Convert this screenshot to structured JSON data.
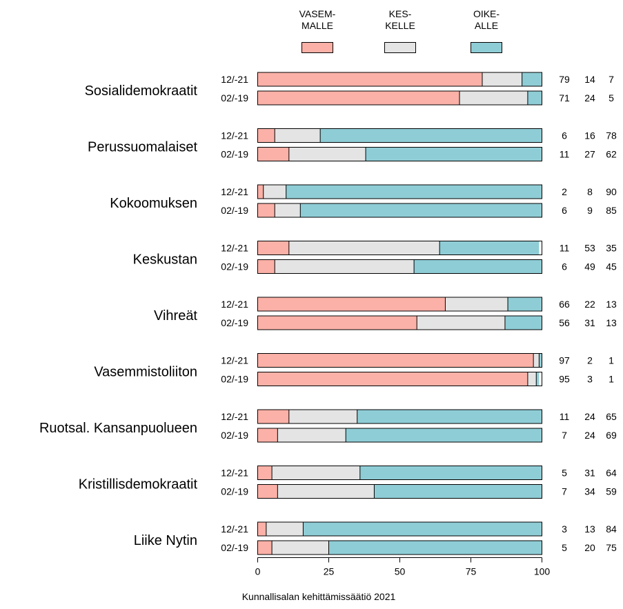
{
  "chart_data": {
    "type": "bar",
    "orientation": "horizontal",
    "stacked": true,
    "title": "",
    "xlabel": "",
    "ylabel": "",
    "xlim": [
      0,
      100
    ],
    "xticks": [
      0,
      25,
      50,
      75,
      100
    ],
    "grid": false,
    "legend_position": "top",
    "legend": [
      {
        "key": "left",
        "label_lines": [
          "VASEM-",
          "MALLE"
        ],
        "color": "#FBB1A7"
      },
      {
        "key": "center",
        "label_lines": [
          "KES-",
          "KELLE"
        ],
        "color": "#E4E4E4"
      },
      {
        "key": "right",
        "label_lines": [
          "OIKE-",
          "ALLE"
        ],
        "color": "#8FCDD6"
      }
    ],
    "series": [
      {
        "name": "VASEMMALLE",
        "color": "#FBB1A7"
      },
      {
        "name": "KESKELLE",
        "color": "#E4E4E4"
      },
      {
        "name": "OIKEALLE",
        "color": "#8FCDD6"
      }
    ],
    "groups": [
      {
        "party": "Sosialidemokraatit",
        "rows": [
          {
            "period": "12/-21",
            "values": [
              79,
              14,
              7
            ]
          },
          {
            "period": "02/-19",
            "values": [
              71,
              24,
              5
            ]
          }
        ]
      },
      {
        "party": "Perussuomalaiset",
        "rows": [
          {
            "period": "12/-21",
            "values": [
              6,
              16,
              78
            ]
          },
          {
            "period": "02/-19",
            "values": [
              11,
              27,
              62
            ]
          }
        ]
      },
      {
        "party": "Kokoomuksen",
        "rows": [
          {
            "period": "12/-21",
            "values": [
              2,
              8,
              90
            ]
          },
          {
            "period": "02/-19",
            "values": [
              6,
              9,
              85
            ]
          }
        ]
      },
      {
        "party": "Keskustan",
        "rows": [
          {
            "period": "12/-21",
            "values": [
              11,
              53,
              35
            ]
          },
          {
            "period": "02/-19",
            "values": [
              6,
              49,
              45
            ]
          }
        ]
      },
      {
        "party": "Vihreät",
        "rows": [
          {
            "period": "12/-21",
            "values": [
              66,
              22,
              13
            ]
          },
          {
            "period": "02/-19",
            "values": [
              56,
              31,
              13
            ]
          }
        ]
      },
      {
        "party": "Vasemmistoliiton",
        "rows": [
          {
            "period": "12/-21",
            "values": [
              97,
              2,
              1
            ]
          },
          {
            "period": "02/-19",
            "values": [
              95,
              3,
              1
            ]
          }
        ]
      },
      {
        "party": "Ruotsal. Kansanpuolueen",
        "rows": [
          {
            "period": "12/-21",
            "values": [
              11,
              24,
              65
            ]
          },
          {
            "period": "02/-19",
            "values": [
              7,
              24,
              69
            ]
          }
        ]
      },
      {
        "party": "Kristillisdemokraatit",
        "rows": [
          {
            "period": "12/-21",
            "values": [
              5,
              31,
              64
            ]
          },
          {
            "period": "02/-19",
            "values": [
              7,
              34,
              59
            ]
          }
        ]
      },
      {
        "party": "Liike Nytin",
        "rows": [
          {
            "period": "12/-21",
            "values": [
              3,
              13,
              84
            ]
          },
          {
            "period": "02/-19",
            "values": [
              5,
              20,
              75
            ]
          }
        ]
      }
    ],
    "source": "Kunnallisalan kehittämissäätiö 2021"
  }
}
